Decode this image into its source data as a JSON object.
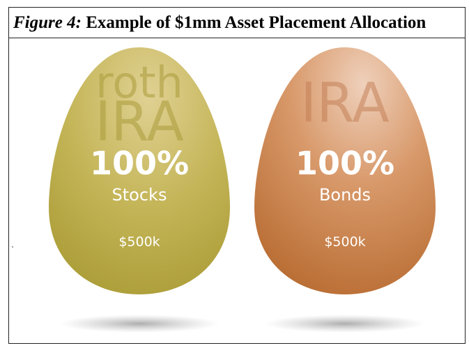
{
  "header": {
    "figure_label": "Figure 4:",
    "title": "Example of $1mm Asset Placement Allocation"
  },
  "eggs": [
    {
      "account_lines": [
        "roth",
        "IRA"
      ],
      "percent": "100%",
      "asset": "Stocks",
      "amount": "$500k"
    },
    {
      "account_lines": [
        "IRA"
      ],
      "percent": "100%",
      "asset": "Bonds",
      "amount": "$500k"
    }
  ],
  "margin_mark": "."
}
